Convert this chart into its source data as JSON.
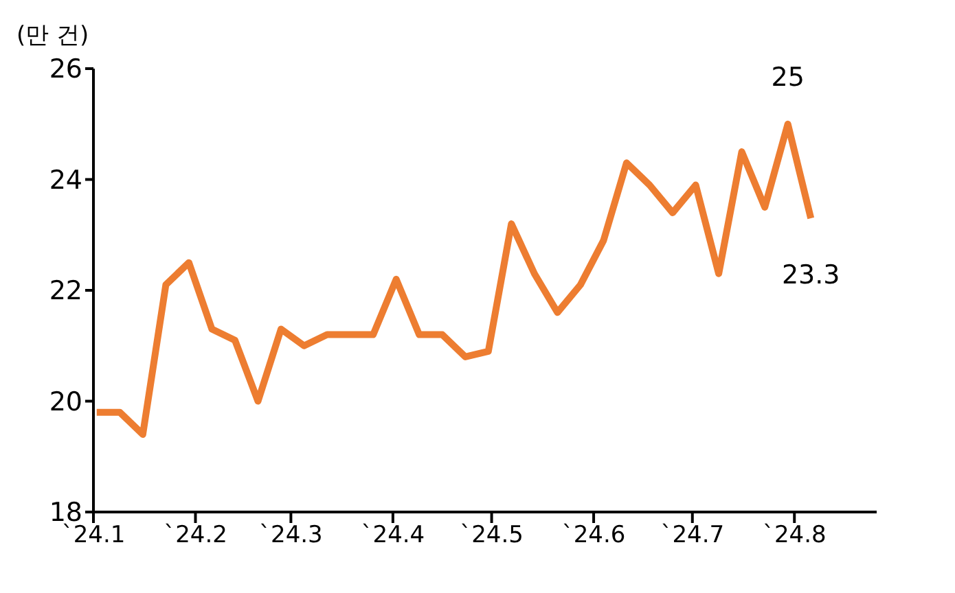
{
  "chart_data": {
    "type": "line",
    "ylabel": "(만 건)",
    "x": [
      "2024-01-02",
      "2024-01-09",
      "2024-01-16",
      "2024-01-23",
      "2024-01-30",
      "2024-02-06",
      "2024-02-13",
      "2024-02-20",
      "2024-02-27",
      "2024-03-05",
      "2024-03-12",
      "2024-03-19",
      "2024-03-26",
      "2024-04-02",
      "2024-04-09",
      "2024-04-16",
      "2024-04-23",
      "2024-04-30",
      "2024-05-07",
      "2024-05-14",
      "2024-05-21",
      "2024-05-28",
      "2024-06-04",
      "2024-06-11",
      "2024-06-18",
      "2024-06-25",
      "2024-07-02",
      "2024-07-09",
      "2024-07-16",
      "2024-07-23",
      "2024-07-30",
      "2024-08-06"
    ],
    "series": [
      {
        "color": "#ed7d31",
        "values": [
          19.8,
          19.8,
          19.4,
          22.1,
          22.5,
          21.3,
          21.1,
          20.0,
          21.3,
          21.0,
          21.2,
          21.2,
          21.2,
          22.2,
          21.2,
          21.2,
          20.8,
          20.9,
          23.2,
          22.3,
          21.6,
          22.1,
          22.9,
          24.3,
          23.9,
          23.4,
          23.9,
          22.3,
          24.5,
          23.5,
          25.0,
          23.3
        ]
      }
    ],
    "xlim": [
      "2024-01-01",
      "2024-08-26"
    ],
    "xticks": [
      {
        "value": "2024-01-01",
        "label": "`24.1"
      },
      {
        "value": "2024-02-01",
        "label": "`24.2"
      },
      {
        "value": "2024-03-01",
        "label": "`24.3"
      },
      {
        "value": "2024-04-01",
        "label": "`24.4"
      },
      {
        "value": "2024-05-01",
        "label": "`24.5"
      },
      {
        "value": "2024-06-01",
        "label": "`24.6"
      },
      {
        "value": "2024-07-01",
        "label": "`24.7"
      },
      {
        "value": "2024-08-01",
        "label": "`24.8"
      }
    ],
    "ylim": [
      18,
      26
    ],
    "yticks": [
      18,
      20,
      22,
      24,
      26
    ],
    "annotations": [
      {
        "text": "25",
        "x": "2024-07-30",
        "y": 25.0
      },
      {
        "text": "23.3",
        "x": "2024-08-06",
        "y": 23.3
      }
    ],
    "grid": false,
    "legend": false,
    "marker": "none",
    "line_style": "solid"
  }
}
